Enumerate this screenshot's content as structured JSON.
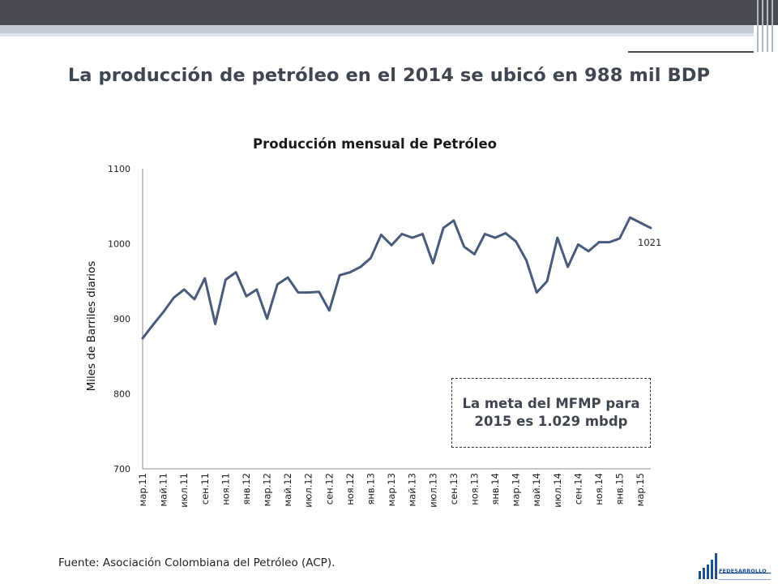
{
  "slide": {
    "title": "La producción de petróleo en el 2014 se ubicó en 988 mil BDP",
    "source": "Fuente: Asociación Colombiana del Petróleo (ACP).",
    "goal_text": "La meta del MFMP para 2015 es 1.029 mbdp",
    "logo_text": "FEDESARROLLO"
  },
  "colors": {
    "line": "#4a5a7a",
    "title": "#404650",
    "logo": "#1f4f8f"
  },
  "chart_data": {
    "type": "line",
    "title": "Producción mensual de Petróleo",
    "ylabel": "Miles de Barriles diarios",
    "xlabel": "",
    "ylim": [
      700,
      1100
    ],
    "yticks": [
      700,
      800,
      900,
      1000,
      1100
    ],
    "grid": false,
    "x_tick_labels": [
      "мар.11",
      "май.11",
      "июл.11",
      "сен.11",
      "ноя.11",
      "янв.12",
      "мар.12",
      "май.12",
      "июл.12",
      "сен.12",
      "ноя.12",
      "янв.13",
      "мар.13",
      "май.13",
      "июл.13",
      "сен.13",
      "ноя.13",
      "янв.14",
      "мар.14",
      "май.14",
      "июл.14",
      "сен.14",
      "ноя.14",
      "янв.15",
      "мар.15"
    ],
    "series": [
      {
        "values": [
          874,
          892,
          909,
          928,
          939,
          926,
          954,
          893,
          952,
          962,
          930,
          939,
          900,
          946,
          955,
          935,
          935,
          936,
          911,
          958,
          962,
          969,
          981,
          1012,
          998,
          1013,
          1008,
          1013,
          974,
          1021,
          1031,
          996,
          986,
          1013,
          1008,
          1014,
          1003,
          978,
          935,
          950,
          1008,
          969,
          999,
          990,
          1002,
          1002,
          1007,
          1035,
          1028,
          1021
        ]
      }
    ],
    "annotations": [
      {
        "x_index": 49,
        "text": "1021"
      }
    ]
  }
}
